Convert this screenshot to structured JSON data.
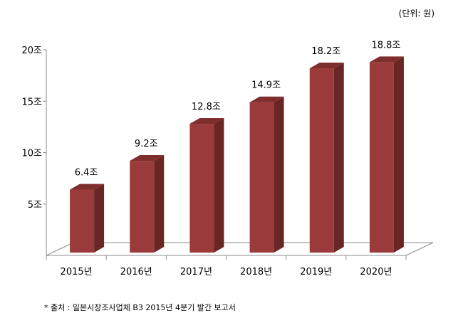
{
  "unit_label": "(단위: 원)",
  "source_note": "* 출처 : 일본시장조사업체 B3 2015년 4분기 발간 보고서",
  "colors": {
    "bar_front": "#9b3a3a",
    "bar_side": "#6a2525",
    "bar_top": "#7f2e2e",
    "floor": "#ffffff",
    "axis": "#8c8c8c"
  },
  "chart_data": {
    "type": "bar",
    "title": "",
    "xlabel": "",
    "ylabel": "",
    "categories": [
      "2015년",
      "2016년",
      "2017년",
      "2018년",
      "2019년",
      "2020년"
    ],
    "values": [
      6.4,
      9.2,
      12.8,
      14.9,
      18.2,
      18.8
    ],
    "data_labels": [
      "6.4조",
      "9.2조",
      "12.8조",
      "14.9조",
      "18.2조",
      "18.8조"
    ],
    "yticks": [
      {
        "value": 5,
        "label": "5조"
      },
      {
        "value": 10,
        "label": "10조"
      },
      {
        "value": 15,
        "label": "15조"
      },
      {
        "value": 20,
        "label": "20조"
      }
    ],
    "ylim": [
      0,
      20
    ],
    "grid": false,
    "style": "3d-column"
  }
}
